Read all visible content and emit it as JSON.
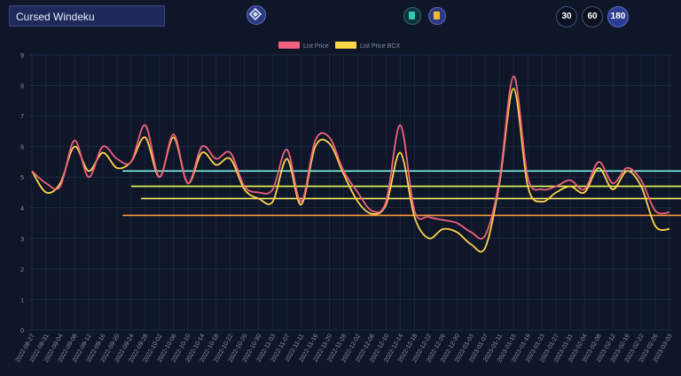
{
  "header": {
    "title": "Cursed Windeku",
    "range_buttons": [
      "30",
      "60",
      "180"
    ],
    "active_range": "180",
    "icons": [
      "network-logo-icon",
      "teal-token-icon",
      "gold-token-icon"
    ]
  },
  "colors": {
    "background": "#0f1628",
    "list_price": "#f0607c",
    "list_price_bcx": "#ffd54a",
    "line_cyan": "#7ff7f0",
    "line_lime": "#e7ff5a",
    "line_yellow": "#f5e86a",
    "line_orange": "#ff9a3c"
  },
  "chart_data": {
    "type": "line",
    "y_ticks": [
      "0",
      "1",
      "2",
      "3",
      "4",
      "5",
      "6",
      "7",
      "8",
      "9"
    ],
    "ylim": [
      0,
      9
    ],
    "grid": true,
    "legend_position": "top-center",
    "x_tick_labels": [
      "2022-08-27",
      "2022-08-31",
      "2022-09-04",
      "2022-09-08",
      "2022-09-12",
      "2022-09-16",
      "2022-09-20",
      "2022-09-24",
      "2022-09-28",
      "2022-10-02",
      "2022-10-06",
      "2022-10-10",
      "2022-10-14",
      "2022-10-18",
      "2022-10-22",
      "2022-10-26",
      "2022-10-30",
      "2022-11-03",
      "2022-11-07",
      "2022-11-11",
      "2022-11-16",
      "2022-11-20",
      "2022-11-28",
      "2022-12-02",
      "2022-12-06",
      "2022-12-10",
      "2022-12-14",
      "2022-12-18",
      "2022-12-22",
      "2022-12-26",
      "2022-12-30",
      "2023-01-03",
      "2023-01-07",
      "2023-01-11",
      "2023-01-15",
      "2023-01-19",
      "2023-01-23",
      "2023-01-27",
      "2023-01-31",
      "2023-02-04",
      "2023-02-08",
      "2023-02-12",
      "2023-02-16",
      "2023-02-22",
      "2023-02-26",
      "2023-03-03"
    ],
    "series": [
      {
        "name": "List Price",
        "color": "#f0607c",
        "x": [
          0,
          1,
          2,
          3,
          4,
          5,
          6,
          7,
          8,
          9,
          10,
          11,
          12,
          13,
          14,
          15,
          16,
          17,
          18,
          19,
          20,
          21,
          22,
          23,
          24,
          25,
          26,
          27,
          28,
          29,
          30,
          31,
          32,
          33,
          34,
          35,
          36,
          37,
          38,
          39,
          40,
          41,
          42,
          43,
          44,
          45
        ],
        "values": [
          5.2,
          4.8,
          4.7,
          6.2,
          5.0,
          6.0,
          5.6,
          5.5,
          6.7,
          5.0,
          6.4,
          4.8,
          6.0,
          5.6,
          5.8,
          4.7,
          4.5,
          4.6,
          5.9,
          4.2,
          6.2,
          6.3,
          5.2,
          4.5,
          3.9,
          4.2,
          6.7,
          3.9,
          3.7,
          3.6,
          3.5,
          3.2,
          3.1,
          4.9,
          8.3,
          5.0,
          4.6,
          4.7,
          4.9,
          4.6,
          5.5,
          4.8,
          5.3,
          4.9,
          3.9,
          3.85
        ]
      },
      {
        "name": "List Price BCX",
        "color": "#ffd54a",
        "x": [
          0,
          1,
          2,
          3,
          4,
          5,
          6,
          7,
          8,
          9,
          10,
          11,
          12,
          13,
          14,
          15,
          16,
          17,
          18,
          19,
          20,
          21,
          22,
          23,
          24,
          25,
          26,
          27,
          28,
          29,
          30,
          31,
          32,
          33,
          34,
          35,
          36,
          37,
          38,
          39,
          40,
          41,
          42,
          43,
          44,
          45
        ],
        "values": [
          5.2,
          4.5,
          4.8,
          6.0,
          5.2,
          5.8,
          5.3,
          5.5,
          6.3,
          5.0,
          6.3,
          4.8,
          5.8,
          5.4,
          5.6,
          4.6,
          4.3,
          4.2,
          5.6,
          4.1,
          6.0,
          6.1,
          5.1,
          4.2,
          3.8,
          4.1,
          5.8,
          3.7,
          3.0,
          3.3,
          3.2,
          2.8,
          2.7,
          4.8,
          7.9,
          4.7,
          4.2,
          4.5,
          4.7,
          4.5,
          5.3,
          4.6,
          5.2,
          4.7,
          3.4,
          3.3
        ]
      }
    ],
    "reference_lines": [
      {
        "color": "#7ff7f0",
        "y": 5.2,
        "x_start": 6.4
      },
      {
        "color": "#e7ff5a",
        "y": 4.7,
        "x_start": 7.0
      },
      {
        "color": "#f5e86a",
        "y": 4.3,
        "x_start": 7.7
      },
      {
        "color": "#ff9a3c",
        "y": 3.75,
        "x_start": 6.4
      }
    ]
  }
}
